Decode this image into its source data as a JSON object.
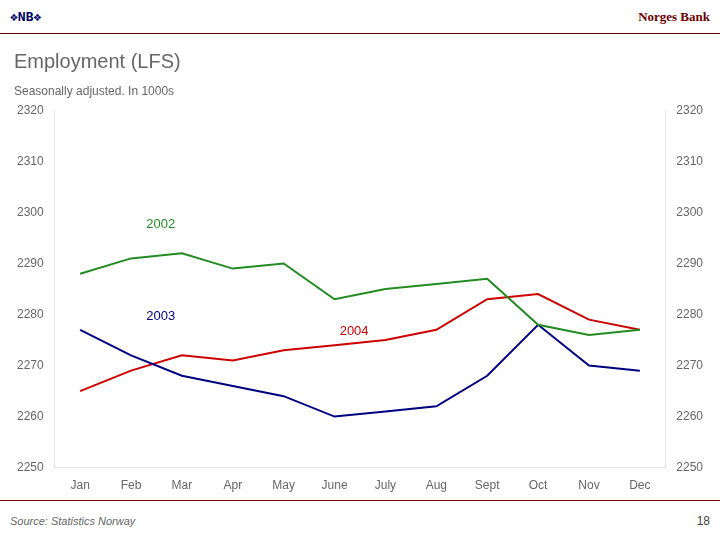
{
  "chart_data": {
    "type": "line",
    "title": "Employment (LFS)",
    "subtitle": "Seasonally adjusted. In 1000s",
    "header_left": "❖NB❖",
    "header_right": "Norges Bank",
    "source": "Source: Statistics Norway",
    "page_number": "18",
    "categories": [
      "Jan",
      "Feb",
      "Mar",
      "Apr",
      "May",
      "June",
      "July",
      "Aug",
      "Sept",
      "Oct",
      "Nov",
      "Dec"
    ],
    "series": [
      {
        "name": "2002",
        "color": "#228B22",
        "values": [
          2288,
          2291,
          2292,
          2289,
          2290,
          2283,
          2285,
          2286,
          2287,
          2278,
          2276,
          2277
        ]
      },
      {
        "name": "2003",
        "color": "#000080",
        "values": [
          2277,
          2272,
          2268,
          2266,
          2264,
          2260,
          2261,
          2262,
          2268,
          2278,
          2270,
          2269
        ]
      },
      {
        "name": "2004",
        "color": "#CC0000",
        "values": [
          2265,
          2269,
          2272,
          2271,
          2273,
          2274,
          2275,
          2277,
          2283,
          2284,
          2279,
          2277
        ]
      }
    ],
    "annotations": [
      {
        "text": "2002",
        "x": 1.3,
        "y": 2297,
        "color": "#228B22"
      },
      {
        "text": "2003",
        "x": 1.3,
        "y": 2279,
        "color": "#000080"
      },
      {
        "text": "2004",
        "x": 5.1,
        "y": 2276,
        "color": "#CC0000"
      }
    ],
    "ylim": [
      2250,
      2320
    ],
    "yticks": [
      2250,
      2260,
      2270,
      2280,
      2290,
      2300,
      2310,
      2320
    ],
    "y2lim": [
      2250,
      2320
    ],
    "y2ticks": [
      2250,
      2260,
      2270,
      2280,
      2290,
      2300,
      2310,
      2320
    ],
    "grid": false
  }
}
